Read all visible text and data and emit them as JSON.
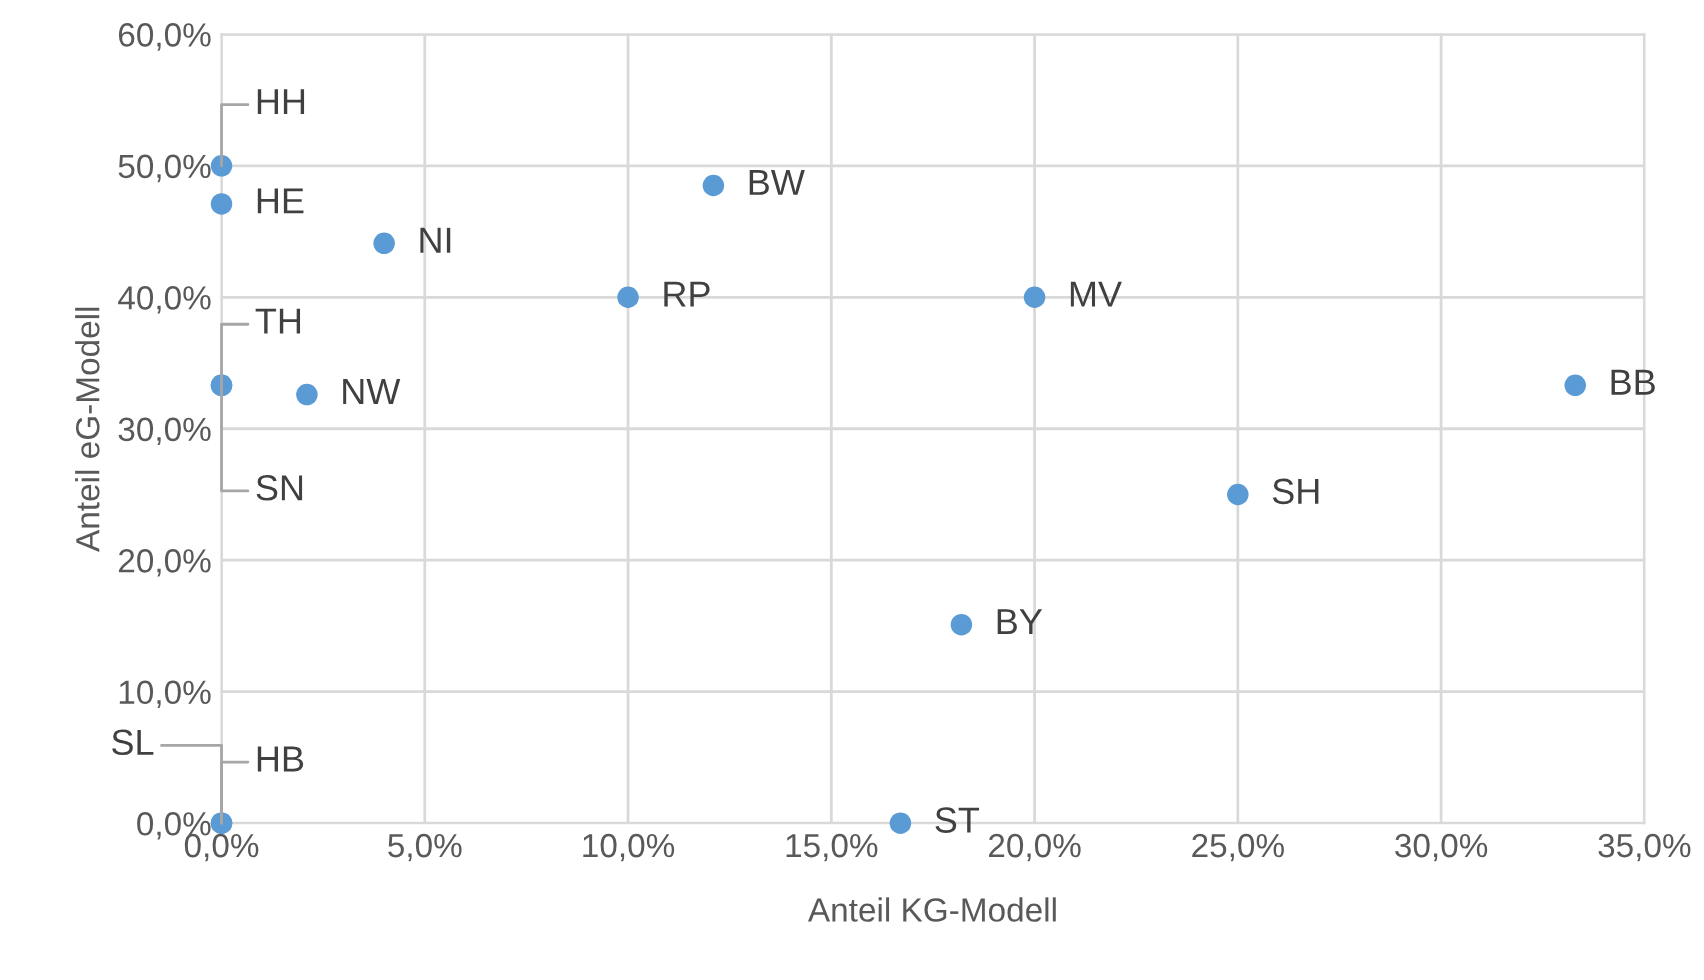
{
  "chart_data": {
    "type": "scatter",
    "xlabel": "Anteil KG-Modell",
    "ylabel": "Anteil eG-Modell",
    "series": [
      {
        "color": "#5b9bd5",
        "x": [
          0,
          0,
          4.0,
          12.1,
          10.0,
          20.0,
          33.3,
          0,
          0,
          2.1,
          25.0,
          18.2,
          16.7,
          0,
          0
        ],
        "values": [
          50.0,
          47.1,
          44.1,
          48.5,
          40.0,
          40.0,
          33.3,
          33.3,
          33.3,
          32.6,
          25.0,
          15.1,
          0,
          0,
          0
        ]
      }
    ],
    "annotations": [
      {
        "text": "HH",
        "x": 0,
        "y": 50.0
      },
      {
        "text": "HE",
        "x": 0,
        "y": 47.1
      },
      {
        "text": "NI",
        "x": 4.0,
        "y": 44.1
      },
      {
        "text": "BW",
        "x": 12.1,
        "y": 48.5
      },
      {
        "text": "RP",
        "x": 10.0,
        "y": 40.0
      },
      {
        "text": "MV",
        "x": 20.0,
        "y": 40.0
      },
      {
        "text": "BB",
        "x": 33.3,
        "y": 33.3
      },
      {
        "text": "TH",
        "x": 0,
        "y": 33.3
      },
      {
        "text": "SN",
        "x": 0,
        "y": 33.3
      },
      {
        "text": "NW",
        "x": 2.1,
        "y": 32.6
      },
      {
        "text": "SH",
        "x": 25.0,
        "y": 25.0
      },
      {
        "text": "BY",
        "x": 18.2,
        "y": 15.1
      },
      {
        "text": "ST",
        "x": 16.7,
        "y": 0
      },
      {
        "text": "SL",
        "x": 0,
        "y": 0
      },
      {
        "text": "HB",
        "x": 0,
        "y": 0
      }
    ],
    "xlim": [
      0,
      35
    ],
    "xticks": [
      {
        "value": 0,
        "label": "0,0%"
      },
      {
        "value": 5,
        "label": "5,0%"
      },
      {
        "value": 10,
        "label": "10,0%"
      },
      {
        "value": 15,
        "label": "15,0%"
      },
      {
        "value": 20,
        "label": "20,0%"
      },
      {
        "value": 25,
        "label": "25,0%"
      },
      {
        "value": 30,
        "label": "30,0%"
      },
      {
        "value": 35,
        "label": "35,0%"
      }
    ],
    "ylim": [
      0,
      60
    ],
    "yticks": [
      {
        "value": 0,
        "label": "0,0%"
      },
      {
        "value": 10,
        "label": "10,0%"
      },
      {
        "value": 20,
        "label": "20,0%"
      },
      {
        "value": 30,
        "label": "30,0%"
      },
      {
        "value": 40,
        "label": "40,0%"
      },
      {
        "value": 50,
        "label": "50,0%"
      },
      {
        "value": 60,
        "label": "60,0%"
      }
    ],
    "grid": true,
    "marker": "circle",
    "legend": false
  }
}
